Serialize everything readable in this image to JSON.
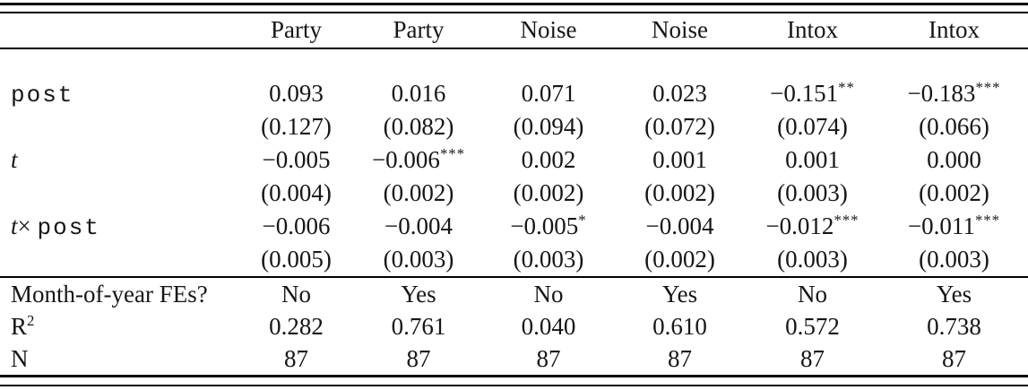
{
  "colors": {
    "background": "#ffffff",
    "text": "#161616",
    "rule": "#000000"
  },
  "table": {
    "header": [
      "",
      "Party",
      "Party",
      "Noise",
      "Noise",
      "Intox",
      "Intox"
    ],
    "rows": [
      {
        "section": "coef",
        "label": [
          {
            "t": "post",
            "s": "mono"
          }
        ],
        "cells": [
          "0.093",
          "0.016",
          "0.071",
          "0.023",
          "−0.151**",
          "−0.183***"
        ]
      },
      {
        "section": "coef",
        "label": [],
        "cells": [
          "(0.127)",
          "(0.082)",
          "(0.094)",
          "(0.072)",
          "(0.074)",
          "(0.066)"
        ]
      },
      {
        "section": "coef",
        "label": [
          {
            "t": "t",
            "s": "math"
          }
        ],
        "cells": [
          "−0.005",
          "−0.006***",
          "0.002",
          "0.001",
          "0.001",
          "0.000"
        ]
      },
      {
        "section": "coef",
        "label": [],
        "cells": [
          "(0.004)",
          "(0.002)",
          "(0.002)",
          "(0.002)",
          "(0.003)",
          "(0.002)"
        ]
      },
      {
        "section": "coef",
        "label": [
          {
            "t": "t",
            "s": "math"
          },
          {
            "t": "× ",
            "s": "serif"
          },
          {
            "t": "post",
            "s": "mono"
          }
        ],
        "cells": [
          "−0.006",
          "−0.004",
          "−0.005*",
          "−0.004",
          "−0.012***",
          "−0.011***"
        ]
      },
      {
        "section": "coef",
        "label": [],
        "cells": [
          "(0.005)",
          "(0.003)",
          "(0.003)",
          "(0.002)",
          "(0.003)",
          "(0.003)"
        ]
      },
      {
        "section": "stats",
        "label": [
          {
            "t": "Month-of-year FEs?",
            "s": "serif"
          }
        ],
        "cells": [
          "No",
          "Yes",
          "No",
          "Yes",
          "No",
          "Yes"
        ]
      },
      {
        "section": "stats",
        "label": [
          {
            "t": "R",
            "s": "serif"
          },
          {
            "t": "2",
            "s": "sup"
          }
        ],
        "cells": [
          "0.282",
          "0.761",
          "0.040",
          "0.610",
          "0.572",
          "0.738"
        ]
      },
      {
        "section": "stats",
        "label": [
          {
            "t": "N",
            "s": "serif"
          }
        ],
        "cells": [
          "87",
          "87",
          "87",
          "87",
          "87",
          "87"
        ]
      }
    ]
  }
}
